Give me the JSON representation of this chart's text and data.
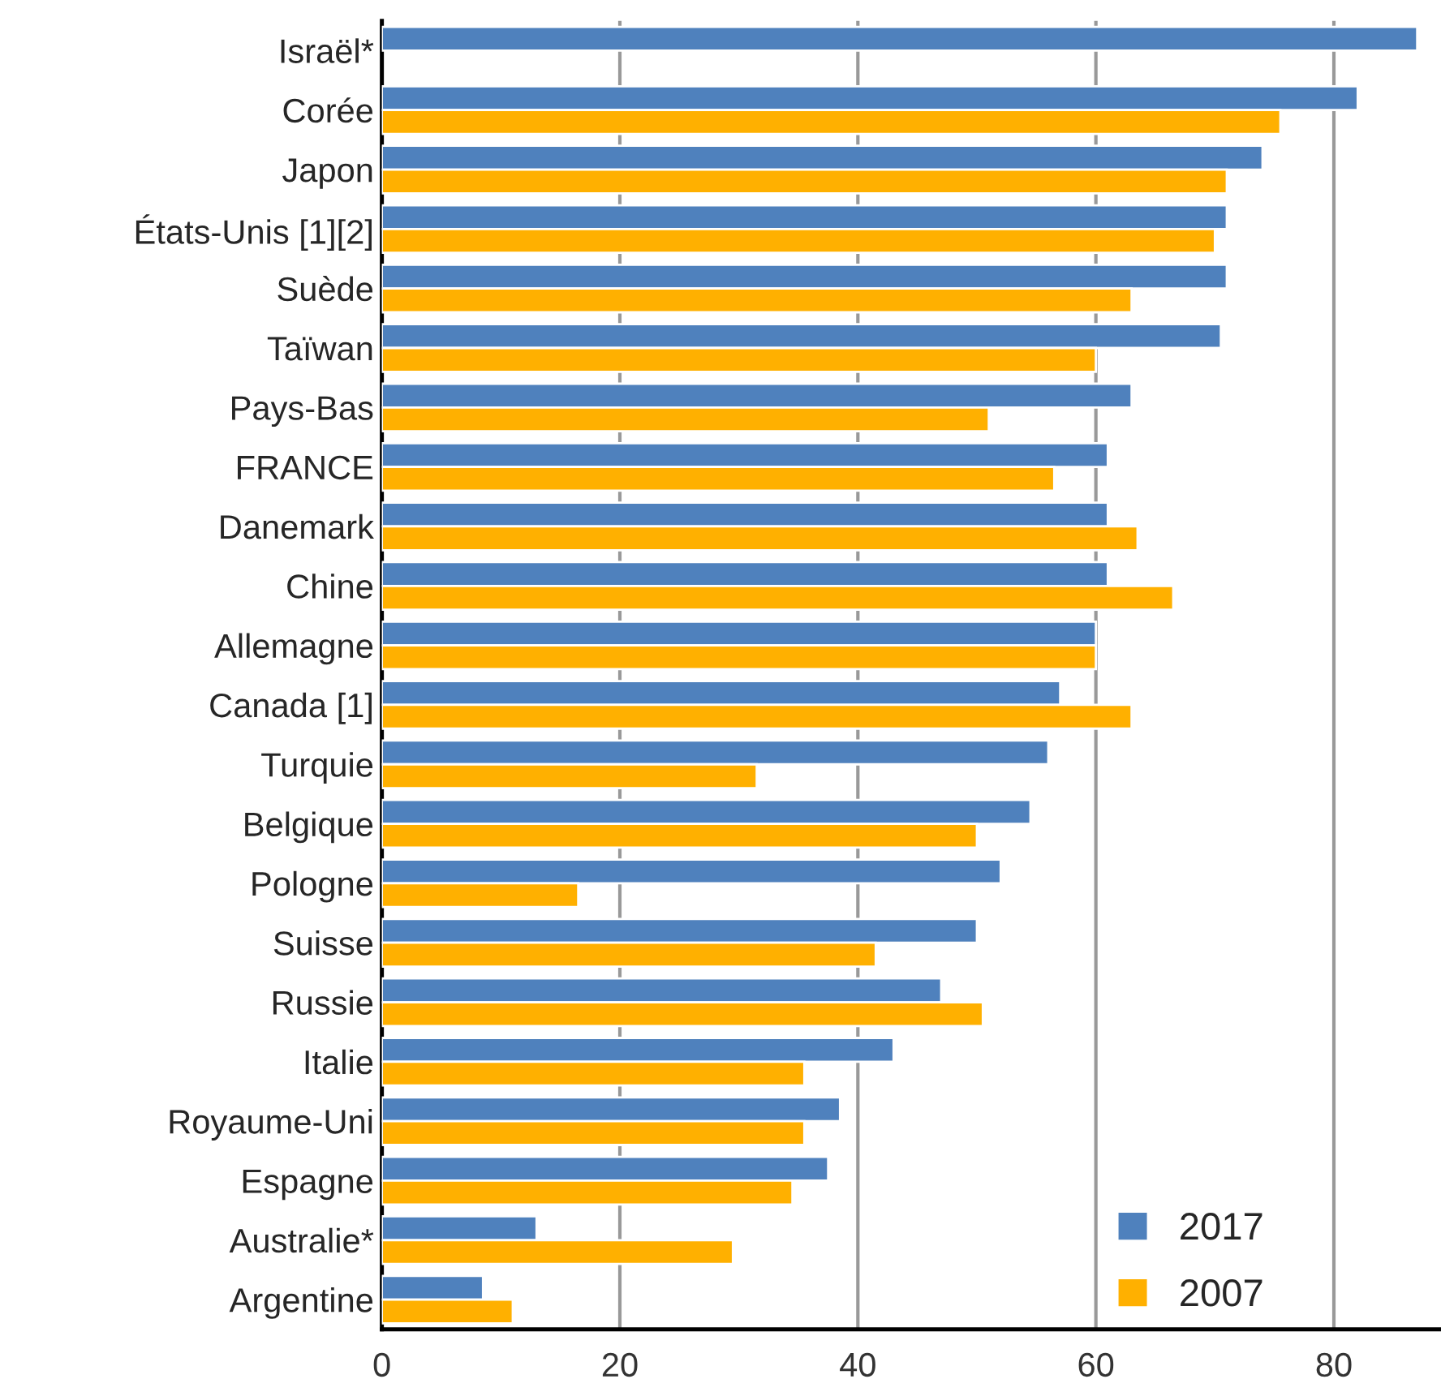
{
  "chart_data": {
    "type": "bar",
    "orientation": "horizontal",
    "categories": [
      "Israël*",
      "Corée",
      "Japon",
      "États-Unis [1][2]",
      "Suède",
      "Taïwan",
      "Pays-Bas",
      "FRANCE",
      "Danemark",
      "Chine",
      "Allemagne",
      "Canada [1]",
      "Turquie",
      "Belgique",
      "Pologne",
      "Suisse",
      "Russie",
      "Italie",
      "Royaume-Uni",
      "Espagne",
      "Australie*",
      "Argentine"
    ],
    "series": [
      {
        "name": "2017",
        "color": "#4f81bd",
        "values": [
          87,
          82,
          74,
          71,
          71,
          70.5,
          63,
          61,
          61,
          61,
          60,
          57,
          56,
          54.5,
          52,
          50,
          47,
          43,
          38.5,
          37.5,
          13,
          8.5
        ]
      },
      {
        "name": "2007",
        "color": "#ffb000",
        "values": [
          null,
          75.5,
          71,
          70,
          63,
          60,
          51,
          56.5,
          63.5,
          66.5,
          60,
          63,
          31.5,
          50,
          16.5,
          41.5,
          50.5,
          35.5,
          35.5,
          34.5,
          29.5,
          11
        ]
      }
    ],
    "xlim": [
      0,
      89
    ],
    "xticks": [
      0,
      20,
      40,
      60,
      80
    ],
    "grid": "x",
    "legend": "bottom right"
  }
}
